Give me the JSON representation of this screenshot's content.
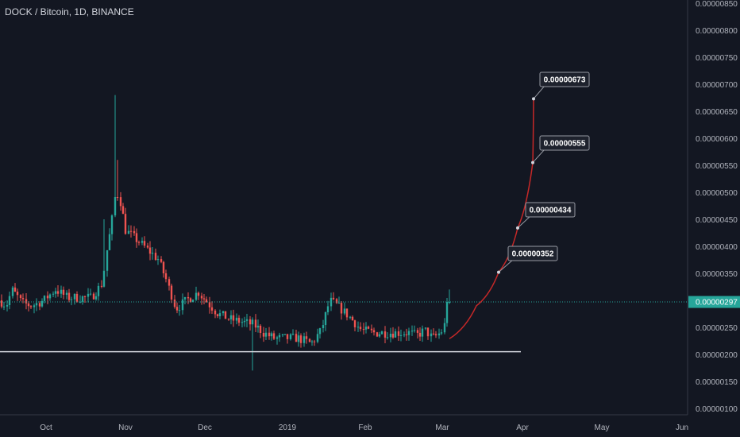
{
  "title": "DOCK / Bitcoin, 1D, BINANCE",
  "chart_data": {
    "type": "candlestick",
    "title": "DOCK / Bitcoin, 1D, BINANCE",
    "y_ticks": [
      "0.00000850",
      "0.00000800",
      "0.00000750",
      "0.00000700",
      "0.00000650",
      "0.00000600",
      "0.00000550",
      "0.00000500",
      "0.00000450",
      "0.00000400",
      "0.00000350",
      "0.00000300",
      "0.00000250",
      "0.00000200",
      "0.00000150",
      "0.00000100"
    ],
    "x_ticks": [
      "Oct",
      "Nov",
      "Dec",
      "2019",
      "Feb",
      "Mar",
      "Apr",
      "May",
      "Jun"
    ],
    "ylim": [
      9.5e-07,
      8.6e-06
    ],
    "last_price": "0.00000297",
    "support_level": 2.05e-06,
    "annotations": [
      "0.00000352",
      "0.00000434",
      "0.00000555",
      "0.00000673"
    ],
    "colors": {
      "up": "#26a69a",
      "down": "#ef5350",
      "projection": "#c62828",
      "last_price": "#26a69a",
      "support": "#d1d4dc"
    }
  }
}
